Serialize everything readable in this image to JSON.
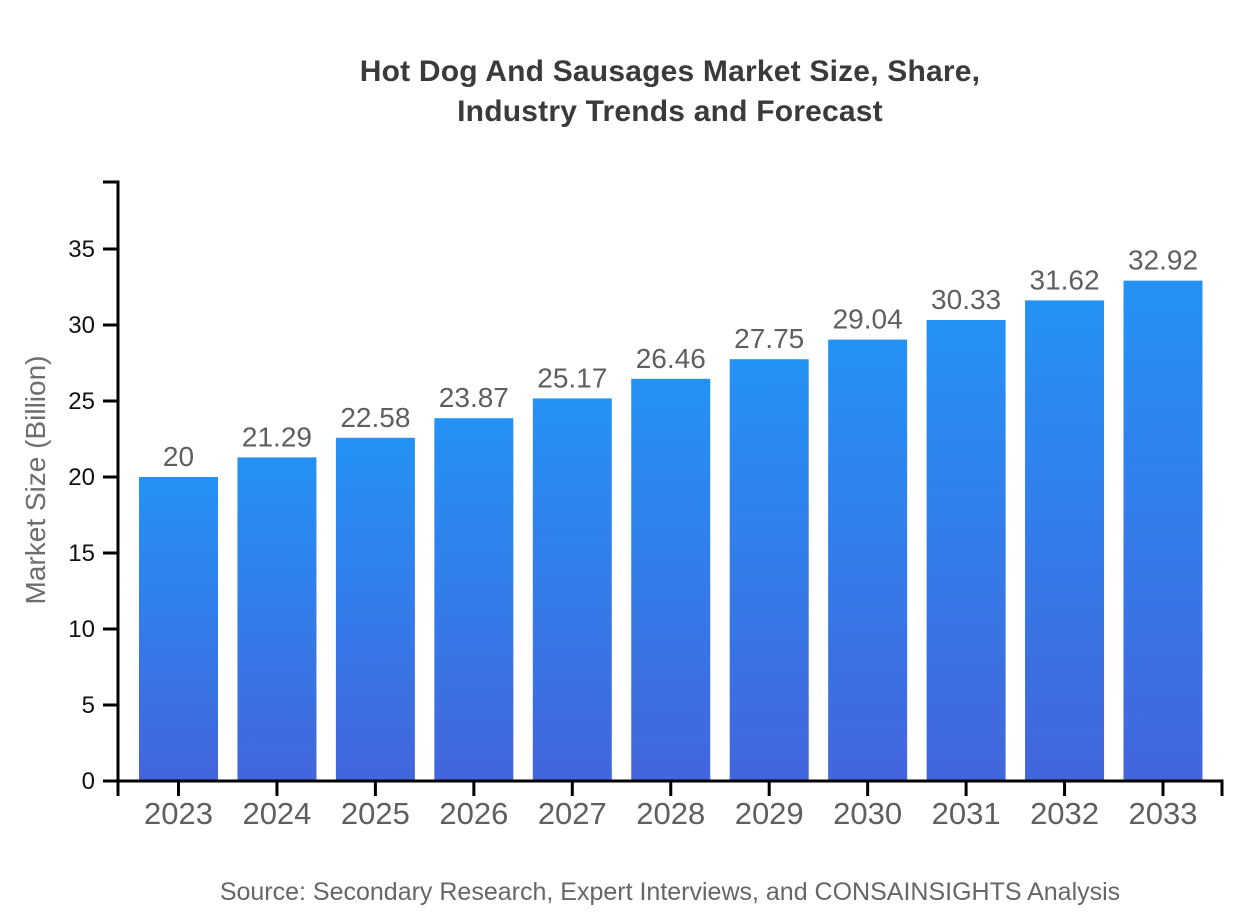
{
  "chart": {
    "title_line1": "Hot Dog And Sausages Market Size, Share,",
    "title_line2": "Industry Trends and Forecast",
    "source": "Source: Secondary Research, Expert Interviews, and CONSAINSIGHTS Analysis"
  },
  "chart_data": {
    "type": "bar",
    "title": "Hot Dog And Sausages Market Size, Share, Industry Trends and Forecast",
    "categories": [
      "2023",
      "2024",
      "2025",
      "2026",
      "2027",
      "2028",
      "2029",
      "2030",
      "2031",
      "2032",
      "2033"
    ],
    "values": [
      20,
      21.29,
      22.58,
      23.87,
      25.17,
      26.46,
      27.75,
      29.04,
      30.33,
      31.62,
      32.92
    ],
    "value_labels": [
      "20",
      "21.29",
      "22.58",
      "23.87",
      "25.17",
      "26.46",
      "27.75",
      "29.04",
      "30.33",
      "31.62",
      "32.92"
    ],
    "xlabel": "",
    "ylabel": "Market Size (Billion)",
    "ylim": [
      0,
      39.4
    ],
    "yticks": [
      0,
      5,
      10,
      15,
      20,
      25,
      30,
      35
    ],
    "grid": false,
    "legend": "none",
    "bar_color_top": "#2492F5",
    "bar_color_bottom": "#4365DC",
    "axis_color": "#000000",
    "source": "Source: Secondary Research, Expert Interviews, and CONSAINSIGHTS Analysis"
  }
}
